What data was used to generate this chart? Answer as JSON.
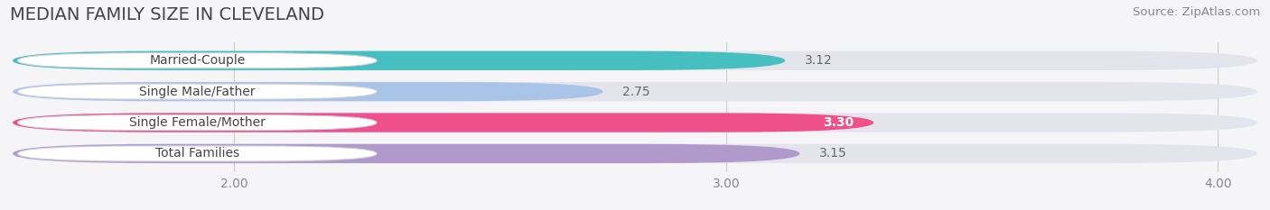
{
  "title": "MEDIAN FAMILY SIZE IN CLEVELAND",
  "source": "Source: ZipAtlas.com",
  "categories": [
    "Married-Couple",
    "Single Male/Father",
    "Single Female/Mother",
    "Total Families"
  ],
  "values": [
    3.12,
    2.75,
    3.3,
    3.15
  ],
  "bar_colors": [
    "#45bfbf",
    "#aac4e8",
    "#f0508a",
    "#b09acc"
  ],
  "value_label_colors": [
    "#666666",
    "#666666",
    "#ffffff",
    "#666666"
  ],
  "value_label_inside": [
    false,
    false,
    true,
    false
  ],
  "xlim_left": 1.55,
  "xlim_right": 4.08,
  "xmin": 2.0,
  "xmax": 4.0,
  "xticks": [
    2.0,
    3.0,
    4.0
  ],
  "xtick_labels": [
    "2.00",
    "3.00",
    "4.00"
  ],
  "bar_height": 0.62,
  "background_color": "#f5f5f8",
  "bar_bg_color": "#e4e4ec",
  "title_fontsize": 14,
  "source_fontsize": 9.5,
  "label_fontsize": 10,
  "value_fontsize": 10,
  "tick_fontsize": 10
}
